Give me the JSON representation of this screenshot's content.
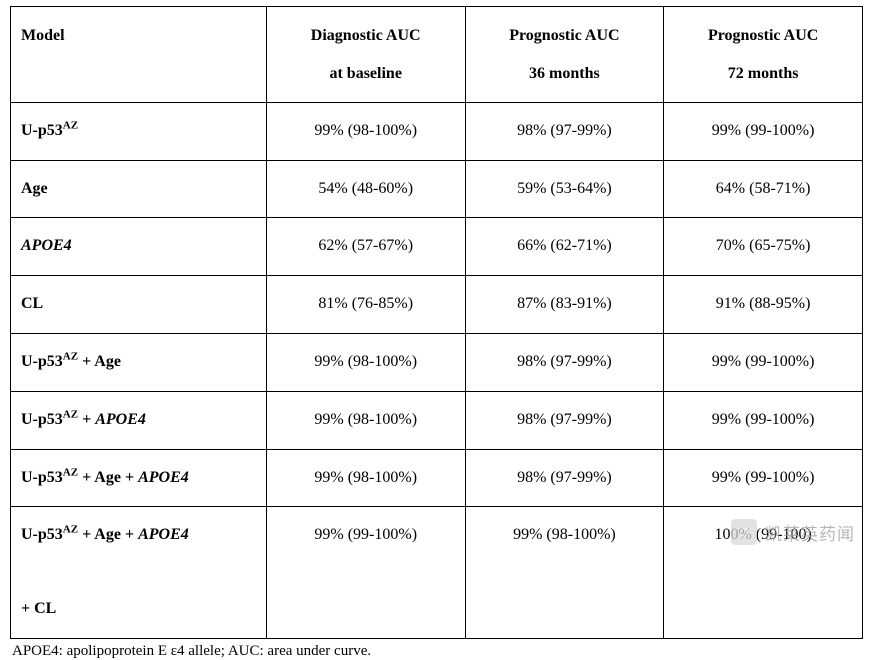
{
  "table": {
    "columns": [
      {
        "line1": "Model",
        "line2": ""
      },
      {
        "line1": "Diagnostic AUC",
        "line2": "at baseline"
      },
      {
        "line1": "Prognostic AUC",
        "line2": "36 months"
      },
      {
        "line1": "Prognostic AUC",
        "line2": "72 months"
      }
    ],
    "col_widths": [
      "30%",
      "23.3%",
      "23.3%",
      "23.3%"
    ],
    "rows": [
      {
        "model_html": "U-p53<span class='sup'>AZ</span>",
        "vals": [
          "99% (98-100%)",
          "98% (97-99%)",
          "99% (99-100%)"
        ]
      },
      {
        "model_html": "Age",
        "vals": [
          "54% (48-60%)",
          "59% (53-64%)",
          "64% (58-71%)"
        ]
      },
      {
        "model_html": "<span class='it'>APOE4</span>",
        "vals": [
          "62% (57-67%)",
          "66% (62-71%)",
          "70% (65-75%)"
        ]
      },
      {
        "model_html": "CL",
        "vals": [
          "81% (76-85%)",
          "87% (83-91%)",
          "91% (88-95%)"
        ]
      },
      {
        "model_html": "U-p53<span class='sup'>AZ</span> + Age",
        "vals": [
          "99% (98-100%)",
          "98% (97-99%)",
          "99% (99-100%)"
        ]
      },
      {
        "model_html": "U-p53<span class='sup'>AZ</span> + <span class='it'>APOE4</span>",
        "vals": [
          "99% (98-100%)",
          "98% (97-99%)",
          "99% (99-100%)"
        ]
      },
      {
        "model_html": "U-p53<span class='sup'>AZ</span> + Age + <span class='it'>APOE4</span>",
        "vals": [
          "99% (98-100%)",
          "98% (97-99%)",
          "99% (99-100%)"
        ]
      },
      {
        "model_html": "U-p53<span class='sup'>AZ</span> + Age + <span class='it'>APOE4</span><br><br>+ CL",
        "vals": [
          "99% (99-100%)",
          "99% (98-100%)",
          "100% (99-100)"
        ]
      }
    ],
    "border_color": "#000000",
    "background_color": "#ffffff",
    "font_family": "Times New Roman",
    "header_fontsize": 16,
    "body_fontsize": 16,
    "text_color": "#000000"
  },
  "footnote": "APOE4: apolipoprotein E ε4 allele; AUC: area under curve.",
  "watermark": {
    "icon_glyph": "○",
    "text": "凯莱英药闻",
    "text_color": "#9e9e9e",
    "icon_bg": "#d9d9d9"
  }
}
